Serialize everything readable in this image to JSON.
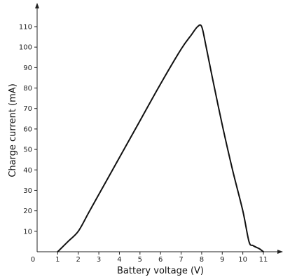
{
  "chart_data": {
    "type": "line",
    "title": "",
    "xlabel": "Battery voltage (V)",
    "ylabel": "Charge current (mA)",
    "xlim": [
      0,
      11.9
    ],
    "ylim": [
      0,
      117
    ],
    "x_ticks": [
      0,
      1,
      2,
      3,
      4,
      5,
      6,
      7,
      8,
      9,
      10,
      11
    ],
    "y_ticks": [
      10,
      20,
      30,
      40,
      50,
      60,
      70,
      80,
      90,
      100,
      110
    ],
    "grid": false,
    "legend": "none",
    "series": [
      {
        "color": "#111111",
        "x": [
          1.0,
          1.5,
          2.0,
          2.5,
          3.0,
          4.0,
          5.0,
          6.0,
          7.0,
          7.5,
          7.8,
          8.0,
          8.2,
          8.5,
          9.0,
          9.5,
          10.0,
          10.3,
          10.5,
          10.8,
          11.0
        ],
        "y": [
          0,
          5,
          10,
          19,
          28,
          46,
          64,
          82,
          99,
          106,
          110,
          110,
          101,
          86,
          62,
          40,
          20,
          5,
          3,
          1.5,
          0
        ]
      }
    ]
  }
}
